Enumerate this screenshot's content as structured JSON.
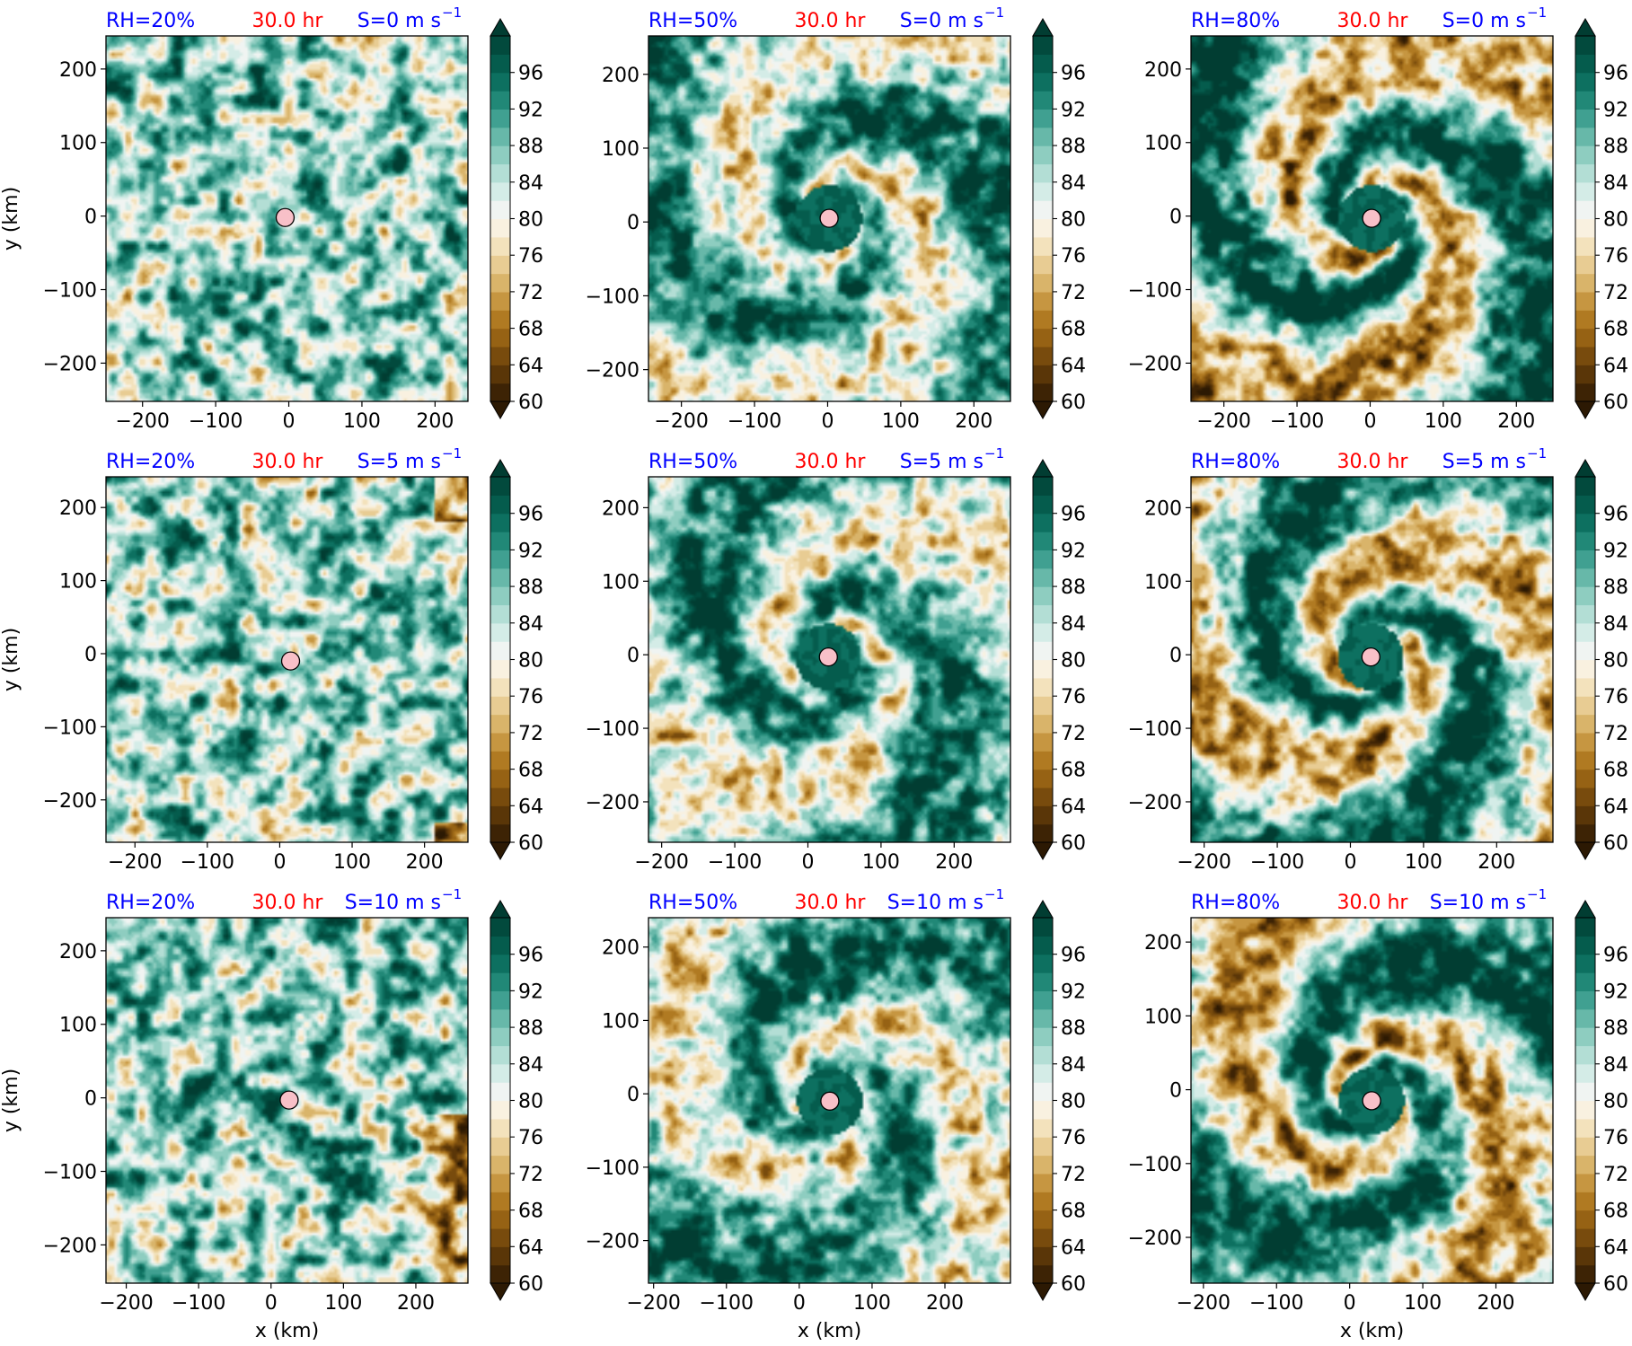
{
  "figure": {
    "colorbar": {
      "levels": [
        60,
        62,
        64,
        66,
        68,
        70,
        72,
        74,
        76,
        78,
        80,
        82,
        84,
        86,
        88,
        90,
        92,
        94,
        96,
        98,
        100
      ],
      "tick_values": [
        60,
        64,
        68,
        72,
        76,
        80,
        84,
        88,
        92,
        96
      ],
      "colors": [
        "#3d2305",
        "#5a3608",
        "#784b0d",
        "#966214",
        "#b07a22",
        "#c69641",
        "#d9b46a",
        "#e8cc93",
        "#f3e2bc",
        "#f9f1e0",
        "#f0f4f2",
        "#d4ece7",
        "#b3ded5",
        "#8ecdc0",
        "#67b8a9",
        "#40a091",
        "#218877",
        "#0d7060",
        "#055c4d",
        "#024a3d"
      ],
      "over_color": "#013d32",
      "under_color": "#2c1903"
    },
    "center_marker_color": "#f8c0c8",
    "colors": {
      "rh_label": "#0000ff",
      "time_label": "#ff0000",
      "shear_label": "#0000ff"
    }
  },
  "chart_data": [
    {
      "type": "heatmap",
      "row": 0,
      "col": 0,
      "rh": "RH=20%",
      "time": "30.0 hr",
      "shear": "S=0 m s",
      "shear_exp": "−1",
      "xlim": [
        -250,
        245
      ],
      "ylim": [
        -252,
        245
      ],
      "xticks": [
        -200,
        -100,
        0,
        100,
        200
      ],
      "yticks": [
        -200,
        -100,
        0,
        100,
        200
      ],
      "xlabel": "",
      "ylabel": "y (km)",
      "center": [
        -5,
        -2
      ],
      "style": "cellular"
    },
    {
      "type": "heatmap",
      "row": 0,
      "col": 1,
      "rh": "RH=50%",
      "time": "30.0 hr",
      "shear": "S=0 m s",
      "shear_exp": "−1",
      "xlim": [
        -245,
        250
      ],
      "ylim": [
        -243,
        252
      ],
      "xticks": [
        -200,
        -100,
        0,
        100,
        200
      ],
      "yticks": [
        -200,
        -100,
        0,
        100,
        200
      ],
      "xlabel": "",
      "ylabel": "",
      "center": [
        2,
        5
      ],
      "style": "spiral-mixed"
    },
    {
      "type": "heatmap",
      "row": 0,
      "col": 2,
      "rh": "RH=80%",
      "time": "30.0 hr",
      "shear": "S=0 m s",
      "shear_exp": "−1",
      "xlim": [
        -245,
        250
      ],
      "ylim": [
        -252,
        245
      ],
      "xticks": [
        -200,
        -100,
        0,
        100,
        200
      ],
      "yticks": [
        -200,
        -100,
        0,
        100,
        200
      ],
      "xlabel": "",
      "ylabel": "",
      "center": [
        2,
        -3
      ],
      "style": "spiral-dry"
    },
    {
      "type": "heatmap",
      "row": 1,
      "col": 0,
      "rh": "RH=20%",
      "time": "30.0 hr",
      "shear": "S=5 m s",
      "shear_exp": "−1",
      "xlim": [
        -240,
        260
      ],
      "ylim": [
        -258,
        242
      ],
      "xticks": [
        -200,
        -100,
        0,
        100,
        200
      ],
      "yticks": [
        -200,
        -100,
        0,
        100,
        200
      ],
      "xlabel": "",
      "ylabel": "y (km)",
      "center": [
        15,
        -10
      ],
      "style": "cellular"
    },
    {
      "type": "heatmap",
      "row": 1,
      "col": 1,
      "rh": "RH=50%",
      "time": "30.0 hr",
      "shear": "S=5 m s",
      "shear_exp": "−1",
      "xlim": [
        -218,
        277
      ],
      "ylim": [
        -255,
        242
      ],
      "xticks": [
        -200,
        -100,
        0,
        100,
        200
      ],
      "yticks": [
        -200,
        -100,
        0,
        100,
        200
      ],
      "xlabel": "",
      "ylabel": "",
      "center": [
        28,
        -3
      ],
      "style": "spiral-mixed"
    },
    {
      "type": "heatmap",
      "row": 1,
      "col": 2,
      "rh": "RH=80%",
      "time": "30.0 hr",
      "shear": "S=5 m s",
      "shear_exp": "−1",
      "xlim": [
        -218,
        277
      ],
      "ylim": [
        -255,
        242
      ],
      "xticks": [
        -200,
        -100,
        0,
        100,
        200
      ],
      "yticks": [
        -200,
        -100,
        0,
        100,
        200
      ],
      "xlabel": "",
      "ylabel": "",
      "center": [
        28,
        -3
      ],
      "style": "spiral-dry"
    },
    {
      "type": "heatmap",
      "row": 2,
      "col": 0,
      "rh": "RH=20%",
      "time": "30.0 hr",
      "shear": "S=10 m s",
      "shear_exp": "−1",
      "xlim": [
        -228,
        272
      ],
      "ylim": [
        -252,
        245
      ],
      "xticks": [
        -200,
        -100,
        0,
        100,
        200
      ],
      "yticks": [
        -200,
        -100,
        0,
        100,
        200
      ],
      "xlabel": "x (km)",
      "ylabel": "y (km)",
      "center": [
        25,
        -3
      ],
      "style": "cellular"
    },
    {
      "type": "heatmap",
      "row": 2,
      "col": 1,
      "rh": "RH=50%",
      "time": "30.0 hr",
      "shear": "S=10 m s",
      "shear_exp": "−1",
      "xlim": [
        -207,
        290
      ],
      "ylim": [
        -258,
        240
      ],
      "xticks": [
        -200,
        -100,
        0,
        100,
        200
      ],
      "yticks": [
        -200,
        -100,
        0,
        100,
        200
      ],
      "xlabel": "x (km)",
      "ylabel": "",
      "center": [
        42,
        -10
      ],
      "style": "spiral-mixed"
    },
    {
      "type": "heatmap",
      "row": 2,
      "col": 2,
      "rh": "RH=80%",
      "time": "30.0 hr",
      "shear": "S=10 m s",
      "shear_exp": "−1",
      "xlim": [
        -217,
        278
      ],
      "ylim": [
        -262,
        233
      ],
      "xticks": [
        -200,
        -100,
        0,
        100,
        200
      ],
      "yticks": [
        -200,
        -100,
        0,
        100,
        200
      ],
      "xlabel": "x (km)",
      "ylabel": "",
      "center": [
        30,
        -15
      ],
      "style": "spiral-dry"
    }
  ]
}
